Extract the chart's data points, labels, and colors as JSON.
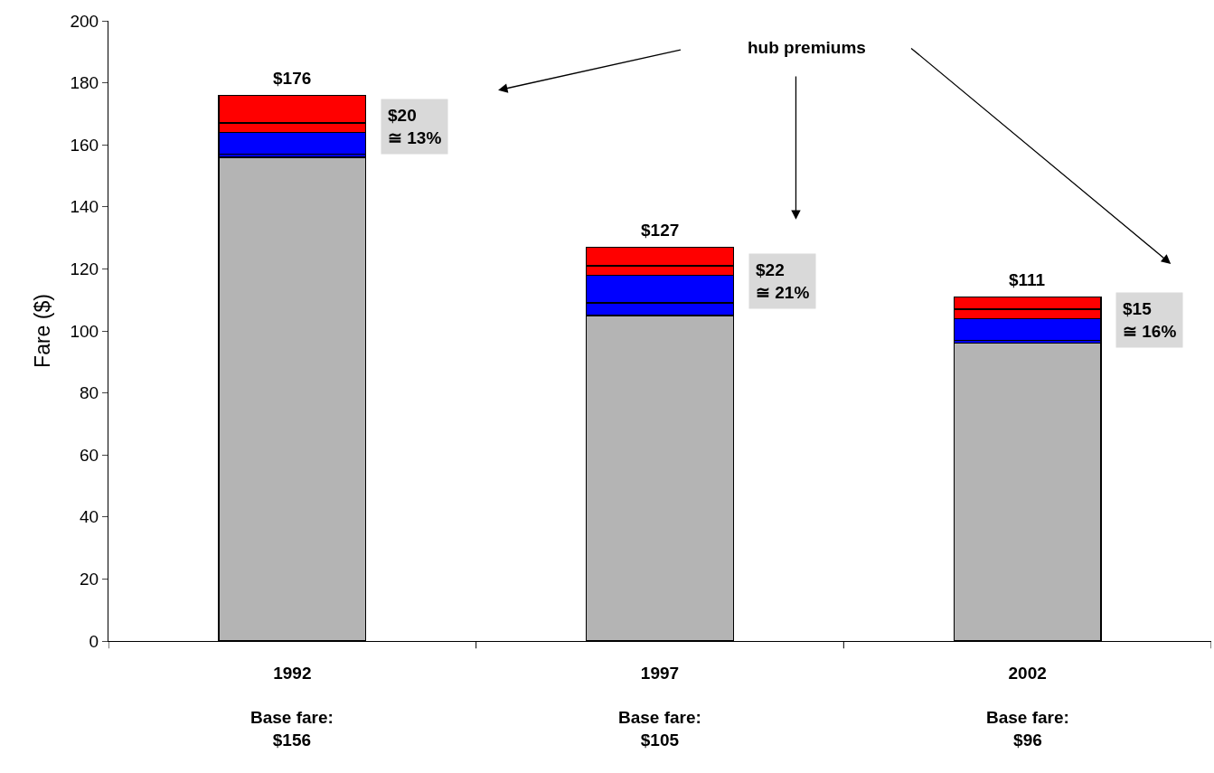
{
  "chart_data": {
    "type": "bar",
    "stacked": true,
    "ylabel": "Fare ($)",
    "categories": [
      "1992",
      "1997",
      "2002"
    ],
    "series": [
      {
        "color": "#b4b4b4",
        "values": [
          156,
          105,
          96
        ]
      },
      {
        "color": "#0000ff",
        "values": [
          1,
          4,
          1
        ]
      },
      {
        "color": "#0000ff",
        "values": [
          7,
          9,
          7
        ]
      },
      {
        "color": "#ff0000",
        "values": [
          3,
          3,
          3
        ]
      },
      {
        "color": "#ff0000",
        "values": [
          9,
          6,
          4
        ]
      }
    ],
    "totals": [
      "$176",
      "$127",
      "$111"
    ],
    "ylim": [
      0,
      200
    ],
    "yticks": [
      0,
      20,
      40,
      60,
      80,
      100,
      120,
      140,
      160,
      180,
      200
    ],
    "annotations": [
      "hub premiums",
      "$20\n≅ 13%",
      "$22\n≅ 21%",
      "$15\n≅ 16%",
      "Base fare:\n$156",
      "Base fare:\n$105",
      "Base fare:\n$96"
    ]
  }
}
